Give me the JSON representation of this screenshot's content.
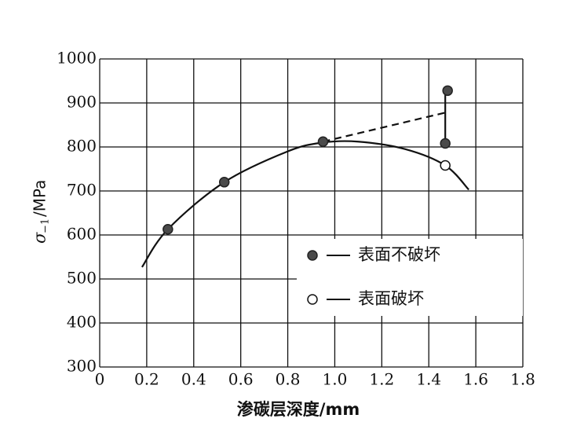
{
  "chart_data": {
    "type": "line",
    "x_label": "渗碳层深度/mm",
    "y_label": {
      "symbol": "σ",
      "subscript": "−1",
      "unit": "/MPa"
    },
    "xlim": [
      0,
      1.8
    ],
    "xticks": [
      0,
      0.2,
      0.4,
      0.6,
      0.8,
      {
        "value": 1,
        "label": "1.0"
      },
      1.2,
      1.4,
      1.6,
      1.8
    ],
    "ylim": [
      300,
      1000
    ],
    "yticks": [
      300,
      400,
      500,
      600,
      700,
      800,
      900,
      1000
    ],
    "grid": true,
    "lines": [
      {
        "style": "solid",
        "color": "#111111",
        "x": [
          0.18,
          0.29,
          0.53,
          0.8,
          0.95,
          1.1,
          1.3,
          1.47,
          1.57
        ],
        "values": [
          527,
          613,
          720,
          790,
          810,
          812,
          795,
          758,
          703
        ]
      },
      {
        "style": "dashed",
        "color": "#111111",
        "x": [
          0.95,
          1.47
        ],
        "values": [
          812,
          878
        ]
      },
      {
        "style": "solid",
        "color": "#111111",
        "x": [
          1.47,
          1.47
        ],
        "values": [
          808,
          928
        ]
      }
    ],
    "series": [
      {
        "name": "表面不破坏",
        "marker": "filled",
        "color": "#4a4a4a",
        "x": [
          0.29,
          0.53,
          0.95,
          1.47,
          1.48
        ],
        "values": [
          613,
          720,
          812,
          808,
          928
        ]
      },
      {
        "name": "表面破坏",
        "marker": "open",
        "color": "#111111",
        "x": [
          1.47
        ],
        "values": [
          758
        ]
      }
    ]
  }
}
